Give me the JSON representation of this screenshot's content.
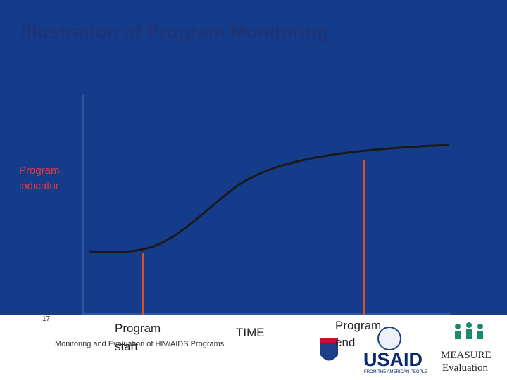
{
  "slide": {
    "title": "Illustration of Program Monitoring",
    "y_label": "Program indicator",
    "x_label": "TIME",
    "start_label": "Program start",
    "end_label": "Program end",
    "footer": {
      "page_number": "17",
      "text": "Monitoring and Evaluation of HIV/AIDS Programs"
    },
    "logos": {
      "usaid": "USAID",
      "usaid_tagline": "FROM THE AMERICAN PEOPLE",
      "measure": "MEASURE",
      "evaluation": "Evaluation"
    }
  }
}
